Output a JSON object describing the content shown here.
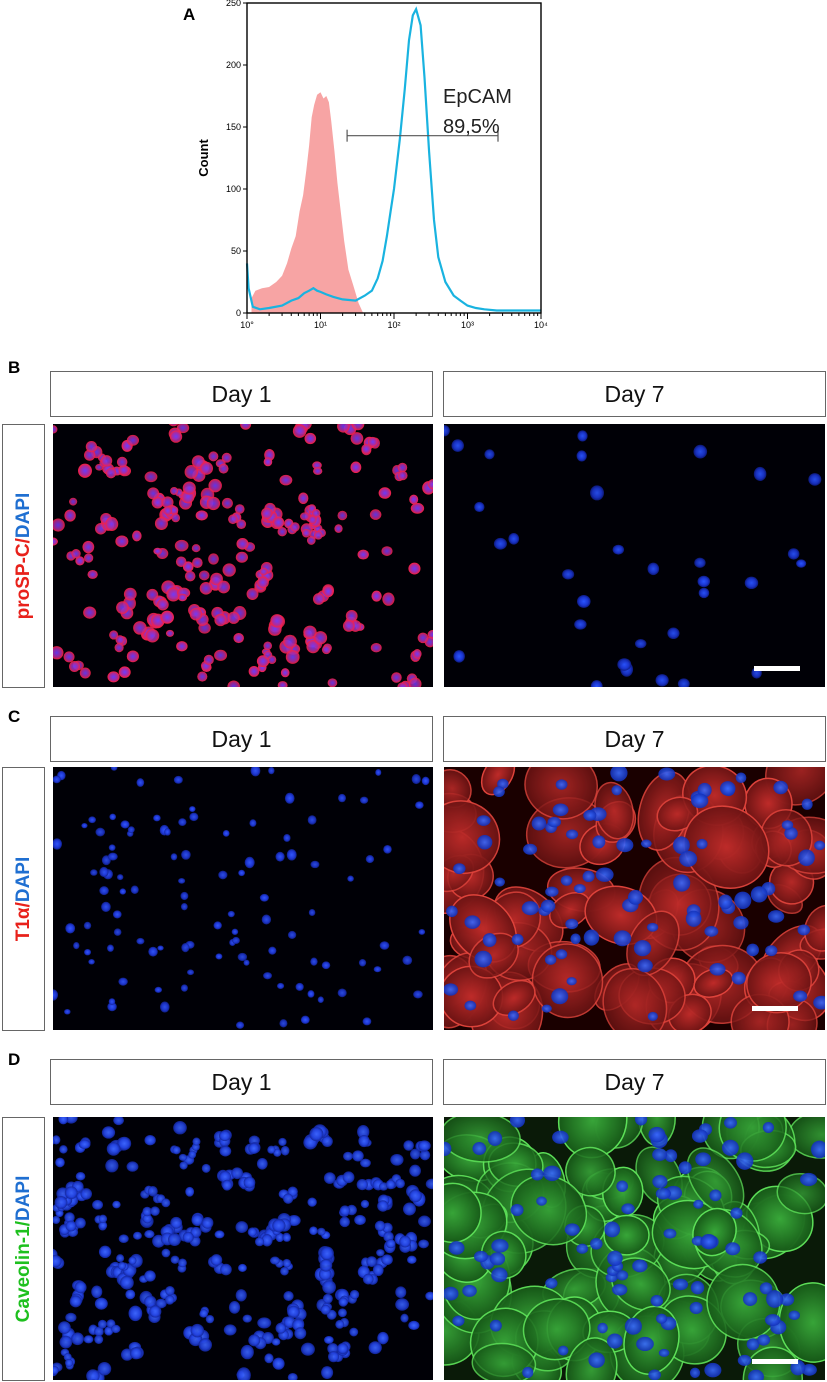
{
  "panels": {
    "a": {
      "letter": "A"
    },
    "b": {
      "letter": "B",
      "marker": "proSP-C/",
      "counterstain": "DAPI",
      "marker_color": "#e8211b",
      "stain_color": "#1f6fd1"
    },
    "c": {
      "letter": "C",
      "marker": "T1α/",
      "counterstain": "DAPI",
      "marker_color": "#e8211b",
      "stain_color": "#1f6fd1"
    },
    "d": {
      "letter": "D",
      "marker": "Caveolin-1/",
      "counterstain": "DAPI",
      "marker_color": "#1ec01e",
      "stain_color": "#1f6fd1"
    }
  },
  "columns": {
    "left": "Day 1",
    "right": "Day 7"
  },
  "chart_data": {
    "type": "area",
    "ylabel": "Count",
    "xscale": "log",
    "xlim": [
      1,
      10000
    ],
    "ylim": [
      0,
      250
    ],
    "yticks": [
      0,
      50,
      100,
      150,
      200,
      250
    ],
    "xtick_labels": [
      "10°",
      "10¹",
      "10²",
      "10³",
      "10⁴"
    ],
    "gate": {
      "label": "EpCAM",
      "value": "89,5%",
      "x_start": 23,
      "x_end": 2600,
      "y": 143
    },
    "series": [
      {
        "color": "#f7a4a4",
        "fill": true,
        "x": [
          1.15,
          1.3,
          1.6,
          2.0,
          2.5,
          3.0,
          3.5,
          4.0,
          4.6,
          5.2,
          5.8,
          6.4,
          7.0,
          7.6,
          8.2,
          9.0,
          10.0,
          11.0,
          12.0,
          13.0,
          14.0,
          15.5,
          17.0,
          19.0,
          21.0,
          24.0,
          28.0,
          33.0,
          38.0
        ],
        "y": [
          12,
          18,
          20,
          21,
          25,
          30,
          40,
          52,
          62,
          82,
          95,
          115,
          135,
          158,
          168,
          176,
          178,
          173,
          175,
          170,
          155,
          130,
          105,
          80,
          58,
          35,
          22,
          8,
          0
        ]
      },
      {
        "color": "#19b3e0",
        "fill": false,
        "x": [
          1.0,
          1.05,
          1.2,
          1.5,
          2.0,
          3.0,
          4.0,
          5.0,
          6.0,
          7.0,
          8.0,
          9.0,
          10.0,
          12.0,
          15.0,
          20.0,
          30.0,
          40.0,
          50.0,
          60.0,
          70.0,
          80.0,
          90.0,
          100.0,
          120.0,
          140.0,
          160.0,
          180.0,
          200.0,
          230.0,
          260.0,
          300.0,
          350.0,
          400.0,
          500.0,
          650.0,
          800.0,
          1000.0,
          1300.0,
          1700.0,
          2500.0,
          4000.0,
          7000.0,
          10000.0
        ],
        "y": [
          40,
          20,
          5,
          3,
          4,
          6,
          10,
          12,
          16,
          18,
          20,
          18,
          17,
          15,
          13,
          11,
          10,
          14,
          18,
          28,
          42,
          62,
          82,
          100,
          140,
          180,
          220,
          240,
          245,
          232,
          190,
          130,
          75,
          45,
          25,
          14,
          10,
          6,
          4,
          3,
          2,
          2,
          2,
          2
        ]
      }
    ]
  }
}
